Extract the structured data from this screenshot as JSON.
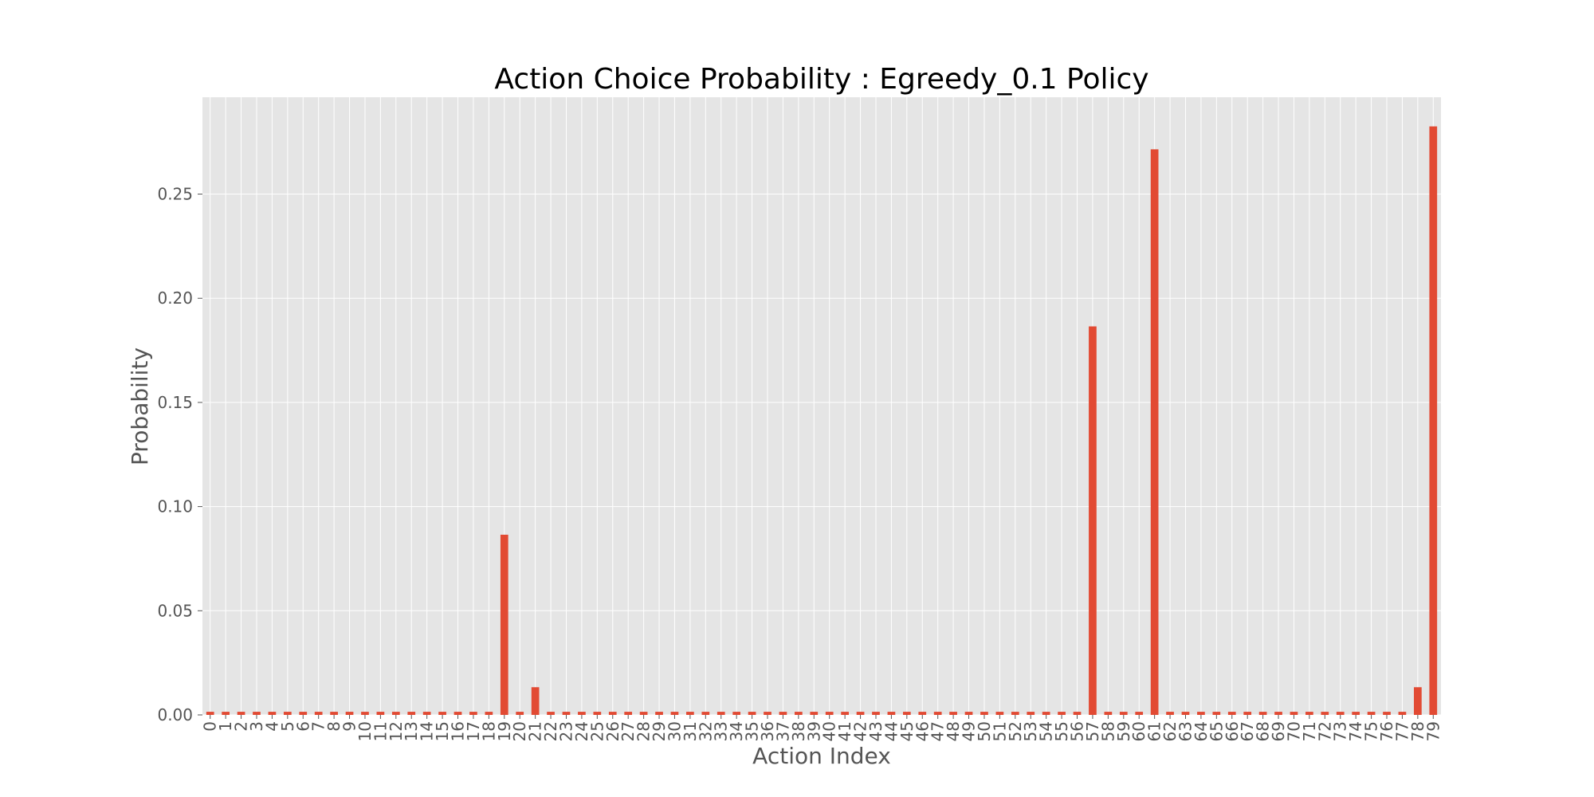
{
  "chart_data": {
    "type": "bar",
    "title": "Action Choice Probability : Egreedy_0.1 Policy",
    "xlabel": "Action Index",
    "ylabel": "Probability",
    "ylim": [
      0,
      0.2965
    ],
    "yticks": [
      0.0,
      0.05,
      0.1,
      0.15,
      0.2,
      0.25
    ],
    "ytick_labels": [
      "0.00",
      "0.05",
      "0.10",
      "0.15",
      "0.20",
      "0.25"
    ],
    "grid": true,
    "legend": "none",
    "categories": [
      "0",
      "1",
      "2",
      "3",
      "4",
      "5",
      "6",
      "7",
      "8",
      "9",
      "10",
      "11",
      "12",
      "13",
      "14",
      "15",
      "16",
      "17",
      "18",
      "19",
      "20",
      "21",
      "22",
      "23",
      "24",
      "25",
      "26",
      "27",
      "28",
      "29",
      "30",
      "31",
      "32",
      "33",
      "34",
      "35",
      "36",
      "37",
      "38",
      "39",
      "40",
      "41",
      "42",
      "43",
      "44",
      "45",
      "46",
      "47",
      "48",
      "49",
      "50",
      "51",
      "52",
      "53",
      "54",
      "55",
      "56",
      "57",
      "58",
      "59",
      "60",
      "61",
      "62",
      "63",
      "64",
      "65",
      "66",
      "67",
      "68",
      "69",
      "70",
      "71",
      "72",
      "73",
      "74",
      "75",
      "76",
      "77",
      "78",
      "79"
    ],
    "values": [
      0.0015,
      0.0015,
      0.0015,
      0.0015,
      0.0015,
      0.0015,
      0.0015,
      0.0015,
      0.0015,
      0.0015,
      0.0015,
      0.0015,
      0.0015,
      0.0015,
      0.0015,
      0.0015,
      0.0015,
      0.0015,
      0.0015,
      0.0865,
      0.0015,
      0.0133,
      0.0015,
      0.0015,
      0.0015,
      0.0015,
      0.0015,
      0.0015,
      0.0015,
      0.0015,
      0.0015,
      0.0015,
      0.0015,
      0.0015,
      0.0015,
      0.0015,
      0.0015,
      0.0015,
      0.0015,
      0.0015,
      0.0015,
      0.0015,
      0.0015,
      0.0015,
      0.0015,
      0.0015,
      0.0015,
      0.0015,
      0.0015,
      0.0015,
      0.0015,
      0.0015,
      0.0015,
      0.0015,
      0.0015,
      0.0015,
      0.0015,
      0.1865,
      0.0015,
      0.0015,
      0.0015,
      0.2715,
      0.0015,
      0.0015,
      0.0015,
      0.0015,
      0.0015,
      0.0015,
      0.0015,
      0.0015,
      0.0015,
      0.0015,
      0.0015,
      0.0015,
      0.0015,
      0.0015,
      0.0015,
      0.0015,
      0.0133,
      0.2825
    ]
  },
  "colors": {
    "bar": "#E24A33",
    "plot_background": "#E5E5E5",
    "grid": "#FFFFFF"
  }
}
